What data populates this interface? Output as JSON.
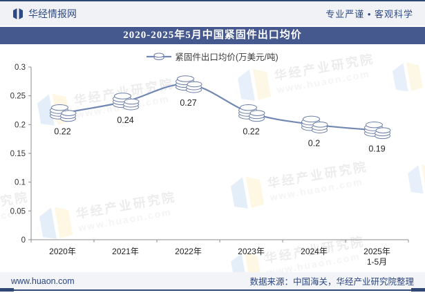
{
  "header": {
    "brand": "华经情报网",
    "slogan": "专业严谨 • 客观科学"
  },
  "title": "2020-2025年5月中国紧固件出口均价",
  "legend": {
    "label": "紧固件出口均价(万美元/吨)"
  },
  "chart_data": {
    "type": "line",
    "title": "2020-2025年5月中国紧固件出口均价",
    "categories": [
      "2020年",
      "2021年",
      "2022年",
      "2023年",
      "2024年",
      "2025年"
    ],
    "last_category_sub": "1-5月",
    "values": [
      0.22,
      0.24,
      0.27,
      0.22,
      0.2,
      0.19
    ],
    "labels": [
      "0.22",
      "0.24",
      "0.27",
      "0.22",
      "0.2",
      "0.19"
    ],
    "series_name": "紧固件出口均价(万美元/吨)",
    "xlabel": "",
    "ylabel": "",
    "ylim": [
      0,
      0.3
    ],
    "yticks": [
      "0",
      "0.05",
      "0.1",
      "0.15",
      "0.2",
      "0.25",
      "0.3"
    ],
    "ytick_values": [
      0,
      0.05,
      0.1,
      0.15,
      0.2,
      0.25,
      0.3
    ],
    "grid": "off",
    "legend_position": "top-center",
    "line_color": "#7187b3",
    "marker": "coin-stack",
    "marker_stroke": "#6a7da6"
  },
  "watermark": {
    "line1": "华经产业研究院",
    "line2": "www.huaon.com"
  },
  "footer": {
    "site": "www.huaon.com",
    "source": "数据来源：中国海关，华经产业研究院整理"
  },
  "colors": {
    "accent_band": "#46598e",
    "frame_bar": "#2f4876",
    "header_bg": "#f1f2f5",
    "footer_bg": "#f3f4f7",
    "brand_text": "#2e4a86",
    "axis": "#8c8c8c",
    "label_text": "#262626"
  },
  "icons": {
    "brand_logo": "book-logo-icon",
    "watermark_logo": "open-book-logo-icon",
    "point_marker": "coin-stack-icon"
  }
}
